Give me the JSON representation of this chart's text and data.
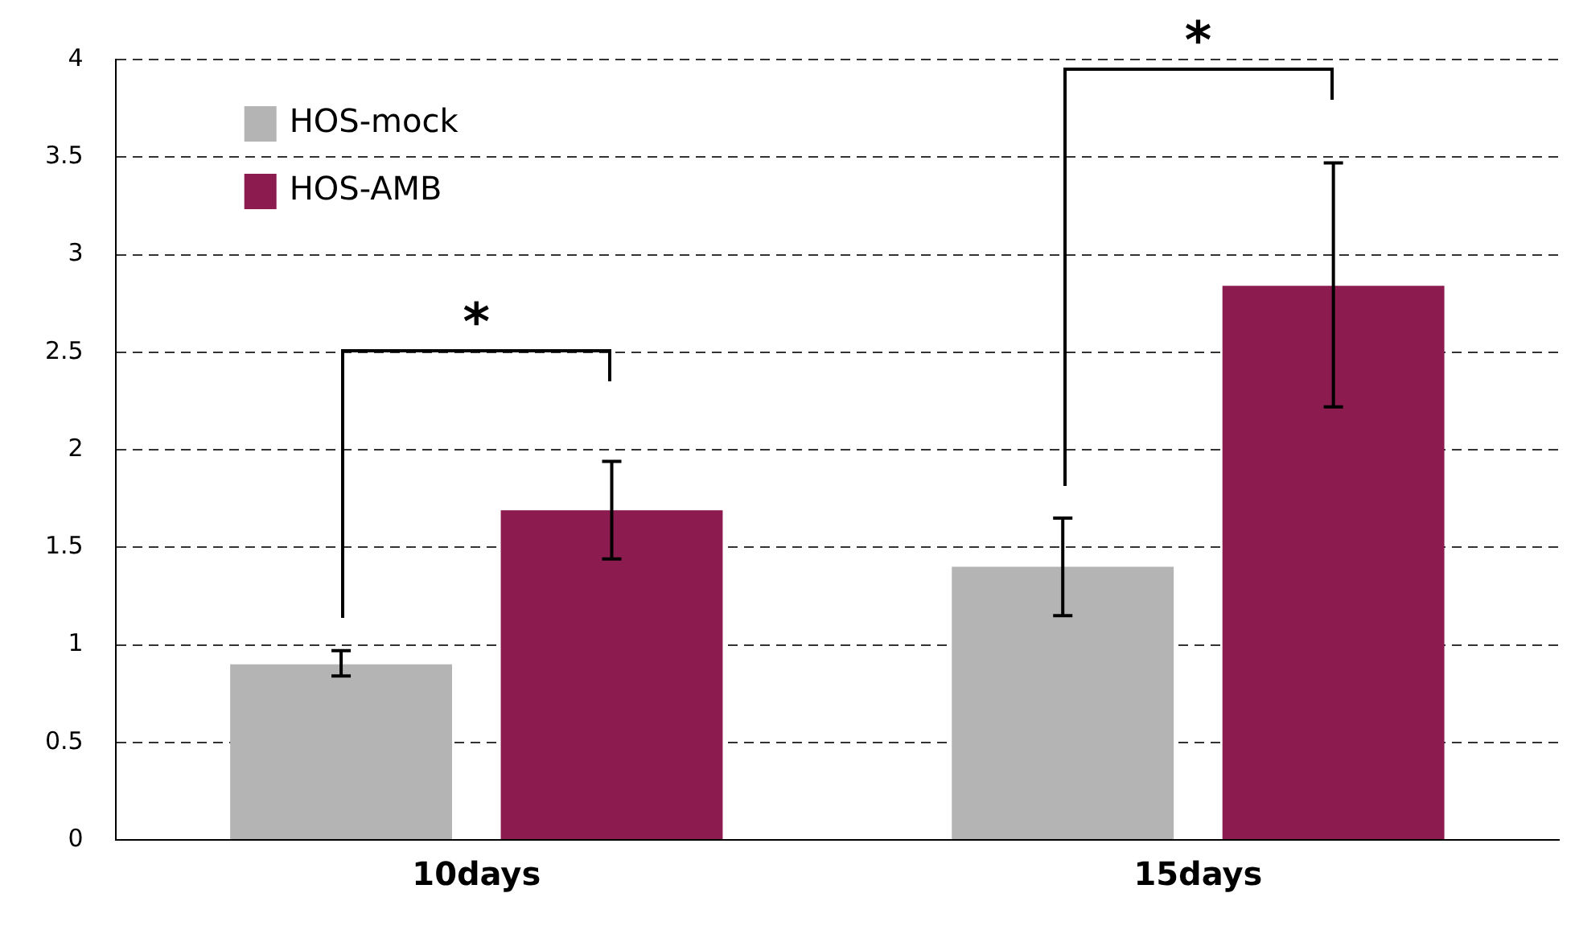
{
  "chart_data": {
    "type": "bar",
    "categories": [
      "10days",
      "15days"
    ],
    "series": [
      {
        "name": "HOS-mock",
        "color": "#b4b4b4",
        "values": [
          0.9,
          1.4
        ],
        "errors": [
          [
            0.84,
            0.97
          ],
          [
            1.15,
            1.65
          ]
        ]
      },
      {
        "name": "HOS-AMB",
        "color": "#8c1c50",
        "values": [
          1.69,
          2.84
        ],
        "errors": [
          [
            1.44,
            1.94
          ],
          [
            2.22,
            3.47
          ]
        ]
      }
    ],
    "ylim": [
      0,
      4
    ],
    "yticks": [
      0,
      0.5,
      1,
      1.5,
      2,
      2.5,
      3,
      3.5,
      4
    ],
    "grid": "y",
    "line_style": "dashed",
    "legend": "top left",
    "annotations": [
      "*",
      "*"
    ]
  }
}
